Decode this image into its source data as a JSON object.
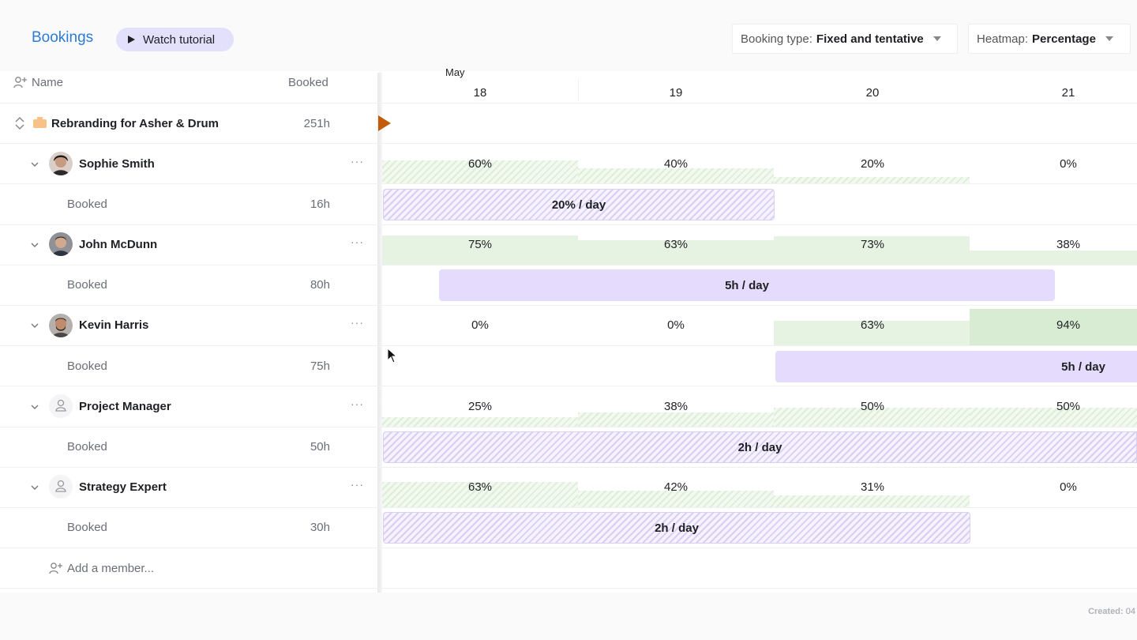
{
  "header": {
    "title": "Bookings",
    "tutorial_label": "Watch tutorial",
    "booking_type_label": "Booking type:",
    "booking_type_value": "Fixed and tentative",
    "heatmap_label": "Heatmap:",
    "heatmap_value": "Percentage"
  },
  "columns": {
    "name": "Name",
    "booked": "Booked"
  },
  "timeline": {
    "month": "May",
    "days": [
      "18",
      "19",
      "20",
      "21"
    ]
  },
  "project": {
    "name": "Rebranding for Asher & Drum",
    "hours": "251h"
  },
  "members": [
    {
      "name": "Sophie Smith",
      "type": "person",
      "booked_label": "Booked",
      "hours": "16h",
      "percentages": [
        "60%",
        "40%",
        "20%",
        "0%"
      ],
      "booking_label": "20% / day"
    },
    {
      "name": "John McDunn",
      "type": "person",
      "booked_label": "Booked",
      "hours": "80h",
      "percentages": [
        "75%",
        "63%",
        "73%",
        "38%"
      ],
      "booking_label": "5h / day"
    },
    {
      "name": "Kevin Harris",
      "type": "person",
      "booked_label": "Booked",
      "hours": "75h",
      "percentages": [
        "0%",
        "0%",
        "63%",
        "94%"
      ],
      "booking_label": "5h / day"
    },
    {
      "name": "Project Manager",
      "type": "role",
      "booked_label": "Booked",
      "hours": "50h",
      "percentages": [
        "25%",
        "38%",
        "50%",
        "50%"
      ],
      "booking_label": "2h / day"
    },
    {
      "name": "Strategy Expert",
      "type": "role",
      "booked_label": "Booked",
      "hours": "30h",
      "percentages": [
        "63%",
        "42%",
        "31%",
        "0%"
      ],
      "booking_label": "2h / day"
    }
  ],
  "add_member_label": "Add a member...",
  "footer": {
    "created_label": "Created:",
    "created_value": "04"
  },
  "colors": {
    "accent": "#2c7bd6",
    "booking": "#e5dcfd",
    "heatmap": "#e6f2e2",
    "marker": "#c25c0a"
  },
  "icons": [
    "play-icon",
    "caret-down-icon",
    "add-person-icon",
    "expand-collapse-icon",
    "folder-icon",
    "chevron-down-icon",
    "more-icon",
    "role-person-icon",
    "cursor-icon"
  ]
}
